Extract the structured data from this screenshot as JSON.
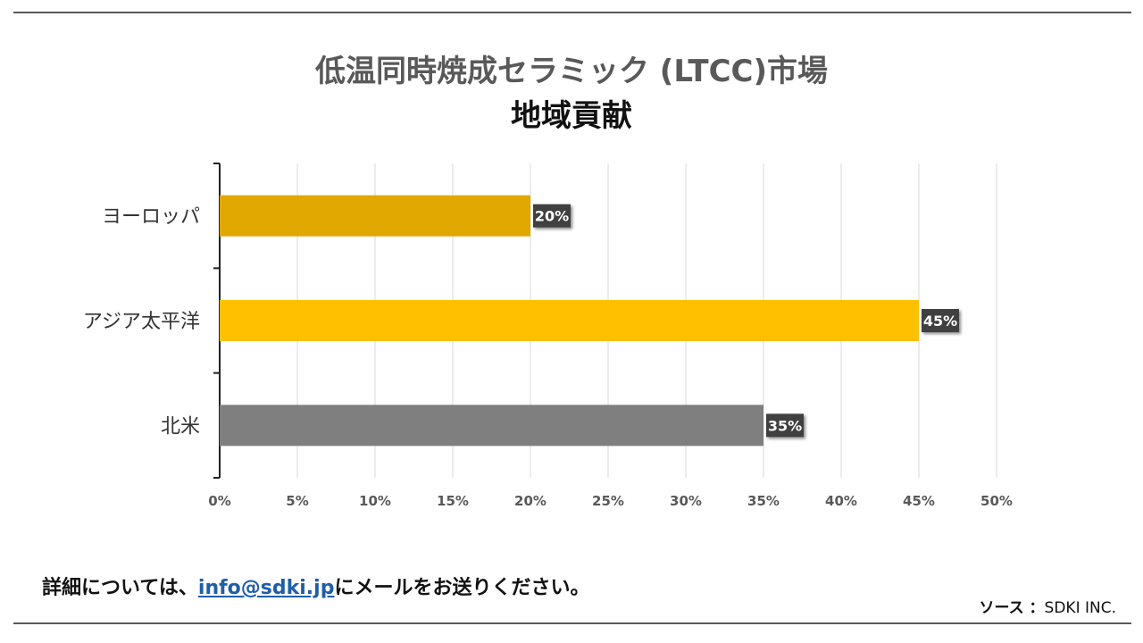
{
  "chart_data": {
    "type": "bar",
    "orientation": "horizontal",
    "title": "低温同時焼成セラミック (LTCC)市場",
    "subtitle": "地域貢献",
    "categories": [
      "ヨーロッパ",
      "アジア太平洋",
      "北米"
    ],
    "values": [
      20,
      45,
      35
    ],
    "data_labels": [
      "20%",
      "45%",
      "35%"
    ],
    "bar_colors": [
      "#E0A800",
      "#FFC000",
      "#7F7F7F"
    ],
    "xlim": [
      0,
      50
    ],
    "x_ticks": [
      0,
      5,
      10,
      15,
      20,
      25,
      30,
      35,
      40,
      45,
      50
    ],
    "x_tick_labels": [
      "0%",
      "5%",
      "10%",
      "15%",
      "20%",
      "25%",
      "30%",
      "35%",
      "40%",
      "45%",
      "50%"
    ],
    "grid": true,
    "xlabel": "",
    "ylabel": ""
  },
  "footer": {
    "note_prefix": "詳細については、",
    "email": "info@sdki.jp",
    "note_suffix": "にメールをお送りください。",
    "source_label": "ソース ：",
    "source_value": "SDKI INC."
  },
  "colors": {
    "title_gray": "#595959",
    "label_box": "#404040",
    "link_blue": "#1f5ea8"
  }
}
